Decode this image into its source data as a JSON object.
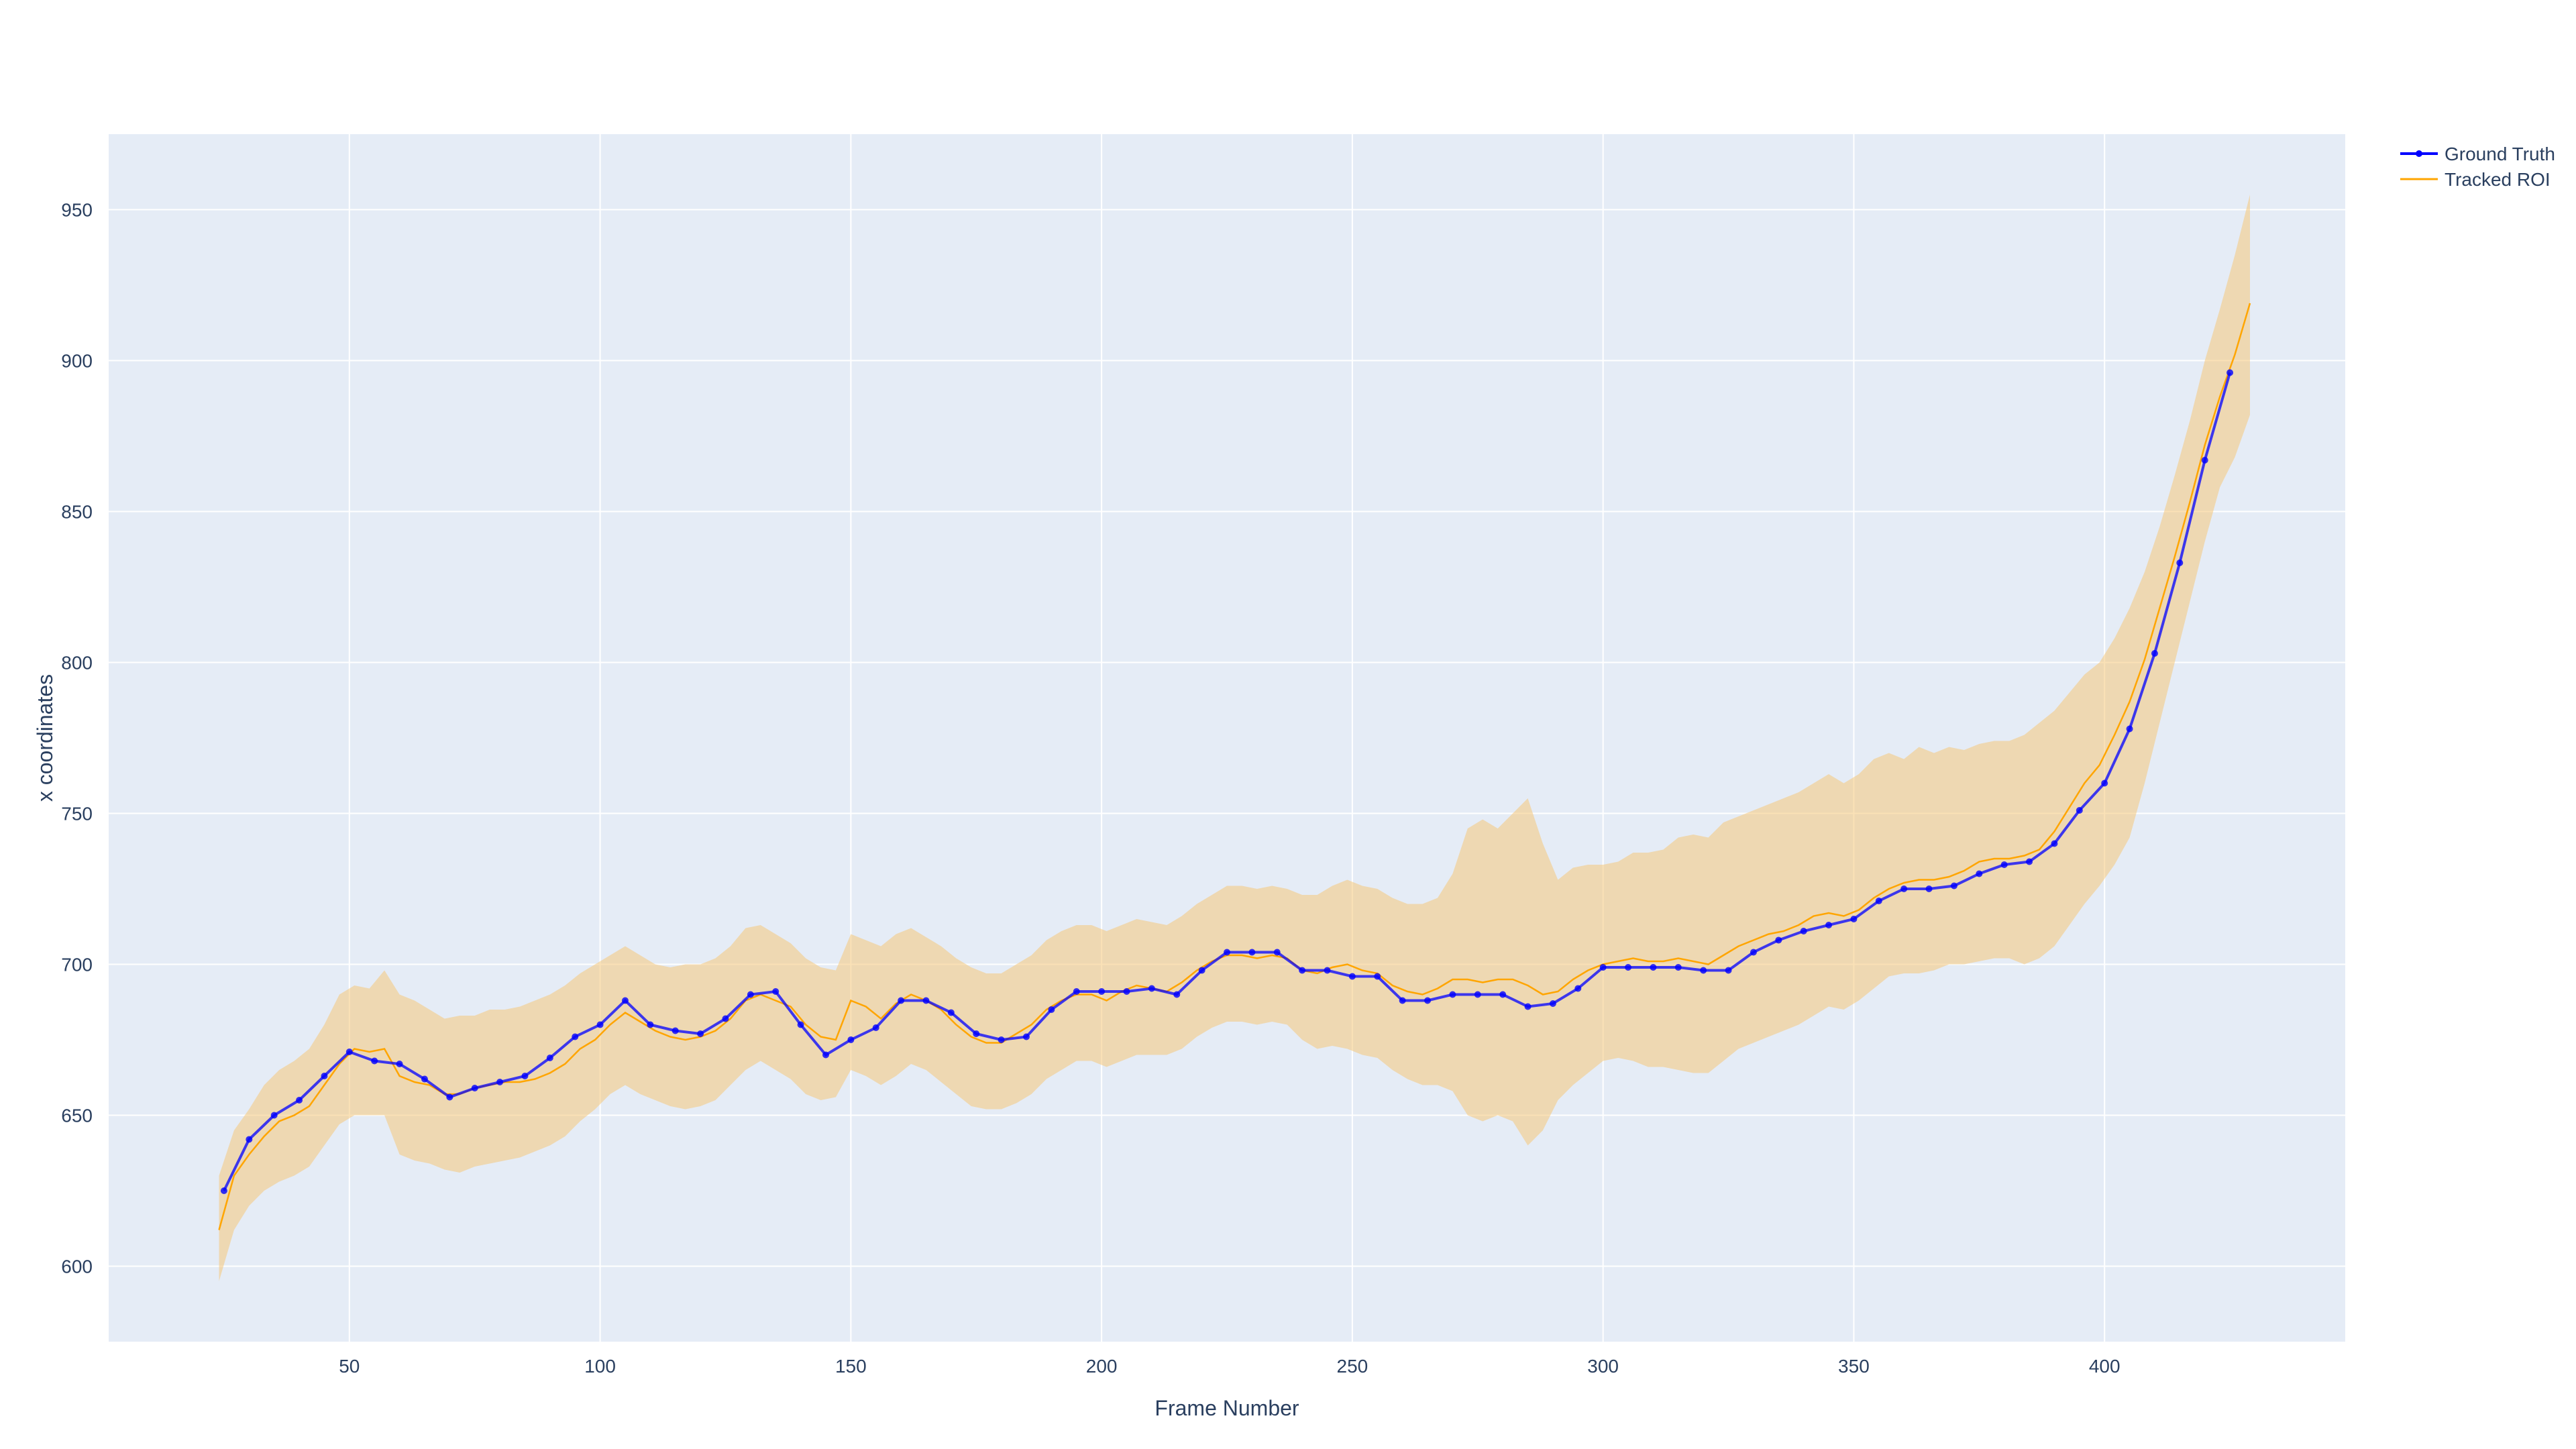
{
  "chart_data": {
    "type": "line",
    "title": "",
    "xlabel": "Frame Number",
    "ylabel": "x coordinates",
    "xlim": [
      2,
      448
    ],
    "ylim": [
      575,
      975
    ],
    "xticks": [
      50,
      100,
      150,
      200,
      250,
      300,
      350,
      400
    ],
    "yticks": [
      600,
      650,
      700,
      750,
      800,
      850,
      900,
      950
    ],
    "grid": true,
    "legend_position": "top-right",
    "colors": {
      "plot_background": "#e5ecf6",
      "grid": "#ffffff",
      "ground_truth": "#0000ff",
      "tracked_roi": "#ffa500",
      "band": "#f5c87a",
      "text": "#2a3f5f"
    },
    "series": [
      {
        "name": "Ground Truth",
        "mode": "lines+markers",
        "x": [
          25,
          30,
          35,
          40,
          45,
          50,
          55,
          60,
          65,
          70,
          75,
          80,
          85,
          90,
          95,
          100,
          105,
          110,
          115,
          120,
          125,
          130,
          135,
          140,
          145,
          150,
          155,
          160,
          165,
          170,
          175,
          180,
          185,
          190,
          195,
          200,
          205,
          210,
          215,
          220,
          225,
          230,
          235,
          240,
          245,
          250,
          255,
          260,
          265,
          270,
          275,
          280,
          285,
          290,
          295,
          300,
          305,
          310,
          315,
          320,
          325,
          330,
          335,
          340,
          345,
          350,
          355,
          360,
          365,
          370,
          375,
          380,
          385,
          390,
          395,
          400,
          405,
          410,
          415,
          420,
          425
        ],
        "y": [
          625,
          642,
          650,
          655,
          663,
          671,
          668,
          667,
          662,
          656,
          659,
          661,
          663,
          669,
          676,
          680,
          688,
          680,
          678,
          677,
          682,
          690,
          691,
          680,
          670,
          675,
          679,
          688,
          688,
          684,
          677,
          675,
          676,
          685,
          691,
          691,
          691,
          692,
          690,
          698,
          704,
          704,
          704,
          698,
          698,
          696,
          696,
          688,
          688,
          690,
          690,
          690,
          686,
          687,
          692,
          699,
          699,
          699,
          699,
          698,
          698,
          704,
          708,
          711,
          713,
          715,
          721,
          725,
          725,
          726,
          730,
          733,
          734,
          740,
          751,
          760,
          778,
          803,
          833,
          867,
          896
        ]
      },
      {
        "name": "Tracked ROI",
        "mode": "lines",
        "x": [
          24,
          27,
          30,
          33,
          36,
          39,
          42,
          45,
          48,
          51,
          54,
          57,
          60,
          63,
          66,
          69,
          72,
          75,
          78,
          81,
          84,
          87,
          90,
          93,
          96,
          99,
          102,
          105,
          108,
          111,
          114,
          117,
          120,
          123,
          126,
          129,
          132,
          135,
          138,
          141,
          144,
          147,
          150,
          153,
          156,
          159,
          162,
          165,
          168,
          171,
          174,
          177,
          180,
          183,
          186,
          189,
          192,
          195,
          198,
          201,
          204,
          207,
          210,
          213,
          216,
          219,
          222,
          225,
          228,
          231,
          234,
          237,
          240,
          243,
          246,
          249,
          252,
          255,
          258,
          261,
          264,
          267,
          270,
          273,
          276,
          279,
          282,
          285,
          288,
          291,
          294,
          297,
          300,
          303,
          306,
          309,
          312,
          315,
          318,
          321,
          324,
          327,
          330,
          333,
          336,
          339,
          342,
          345,
          348,
          351,
          354,
          357,
          360,
          363,
          366,
          369,
          372,
          375,
          378,
          381,
          384,
          387,
          390,
          393,
          396,
          399,
          402,
          405,
          408,
          411,
          414,
          417,
          420,
          423,
          426,
          429
        ],
        "y": [
          612,
          630,
          637,
          643,
          648,
          650,
          653,
          660,
          667,
          672,
          671,
          672,
          663,
          661,
          660,
          657,
          657,
          659,
          660,
          661,
          661,
          662,
          664,
          667,
          672,
          675,
          680,
          684,
          681,
          678,
          676,
          675,
          676,
          678,
          682,
          688,
          690,
          688,
          686,
          680,
          676,
          675,
          688,
          686,
          682,
          687,
          690,
          688,
          685,
          680,
          676,
          674,
          674,
          677,
          680,
          685,
          688,
          690,
          690,
          688,
          691,
          693,
          692,
          691,
          694,
          698,
          701,
          703,
          703,
          702,
          703,
          702,
          698,
          697,
          699,
          700,
          698,
          697,
          693,
          691,
          690,
          692,
          695,
          695,
          694,
          695,
          695,
          693,
          690,
          691,
          695,
          698,
          700,
          701,
          702,
          701,
          701,
          702,
          701,
          700,
          703,
          706,
          708,
          710,
          711,
          713,
          716,
          717,
          716,
          718,
          722,
          725,
          727,
          728,
          728,
          729,
          731,
          734,
          735,
          735,
          736,
          738,
          744,
          752,
          760,
          766,
          776,
          787,
          801,
          818,
          835,
          853,
          872,
          888,
          902,
          919
        ]
      }
    ],
    "band": {
      "x": [
        24,
        27,
        30,
        33,
        36,
        39,
        42,
        45,
        48,
        51,
        54,
        57,
        60,
        63,
        66,
        69,
        72,
        75,
        78,
        81,
        84,
        87,
        90,
        93,
        96,
        99,
        102,
        105,
        108,
        111,
        114,
        117,
        120,
        123,
        126,
        129,
        132,
        135,
        138,
        141,
        144,
        147,
        150,
        153,
        156,
        159,
        162,
        165,
        168,
        171,
        174,
        177,
        180,
        183,
        186,
        189,
        192,
        195,
        198,
        201,
        204,
        207,
        210,
        213,
        216,
        219,
        222,
        225,
        228,
        231,
        234,
        237,
        240,
        243,
        246,
        249,
        252,
        255,
        258,
        261,
        264,
        267,
        270,
        273,
        276,
        279,
        282,
        285,
        288,
        291,
        294,
        297,
        300,
        303,
        306,
        309,
        312,
        315,
        318,
        321,
        324,
        327,
        330,
        333,
        336,
        339,
        342,
        345,
        348,
        351,
        354,
        357,
        360,
        363,
        366,
        369,
        372,
        375,
        378,
        381,
        384,
        387,
        390,
        393,
        396,
        399,
        402,
        405,
        408,
        411,
        414,
        417,
        420,
        423,
        426,
        429
      ],
      "upper": [
        630,
        645,
        652,
        660,
        665,
        668,
        672,
        680,
        690,
        693,
        692,
        698,
        690,
        688,
        685,
        682,
        683,
        683,
        685,
        685,
        686,
        688,
        690,
        693,
        697,
        700,
        703,
        706,
        703,
        700,
        699,
        700,
        700,
        702,
        706,
        712,
        713,
        710,
        707,
        702,
        699,
        698,
        710,
        708,
        706,
        710,
        712,
        709,
        706,
        702,
        699,
        697,
        697,
        700,
        703,
        708,
        711,
        713,
        713,
        711,
        713,
        715,
        714,
        713,
        716,
        720,
        723,
        726,
        726,
        725,
        726,
        725,
        723,
        723,
        726,
        728,
        726,
        725,
        722,
        720,
        720,
        722,
        730,
        745,
        748,
        745,
        750,
        755,
        740,
        728,
        732,
        733,
        733,
        734,
        737,
        737,
        738,
        742,
        743,
        742,
        747,
        749,
        751,
        753,
        755,
        757,
        760,
        763,
        760,
        763,
        768,
        770,
        768,
        772,
        770,
        772,
        771,
        773,
        774,
        774,
        776,
        780,
        784,
        790,
        796,
        800,
        808,
        818,
        830,
        845,
        862,
        880,
        900,
        917,
        935,
        955
      ],
      "lower": [
        595,
        612,
        620,
        625,
        628,
        630,
        633,
        640,
        647,
        650,
        650,
        650,
        637,
        635,
        634,
        632,
        631,
        633,
        634,
        635,
        636,
        638,
        640,
        643,
        648,
        652,
        657,
        660,
        657,
        655,
        653,
        652,
        653,
        655,
        660,
        665,
        668,
        665,
        662,
        657,
        655,
        656,
        665,
        663,
        660,
        663,
        667,
        665,
        661,
        657,
        653,
        652,
        652,
        654,
        657,
        662,
        665,
        668,
        668,
        666,
        668,
        670,
        670,
        670,
        672,
        676,
        679,
        681,
        681,
        680,
        681,
        680,
        675,
        672,
        673,
        672,
        670,
        669,
        665,
        662,
        660,
        660,
        658,
        650,
        648,
        650,
        648,
        640,
        645,
        655,
        660,
        664,
        668,
        669,
        668,
        666,
        666,
        665,
        664,
        664,
        668,
        672,
        674,
        676,
        678,
        680,
        683,
        686,
        685,
        688,
        692,
        696,
        697,
        697,
        698,
        700,
        700,
        701,
        702,
        702,
        700,
        702,
        706,
        713,
        720,
        726,
        733,
        742,
        760,
        780,
        800,
        820,
        840,
        858,
        868,
        882
      ]
    }
  }
}
